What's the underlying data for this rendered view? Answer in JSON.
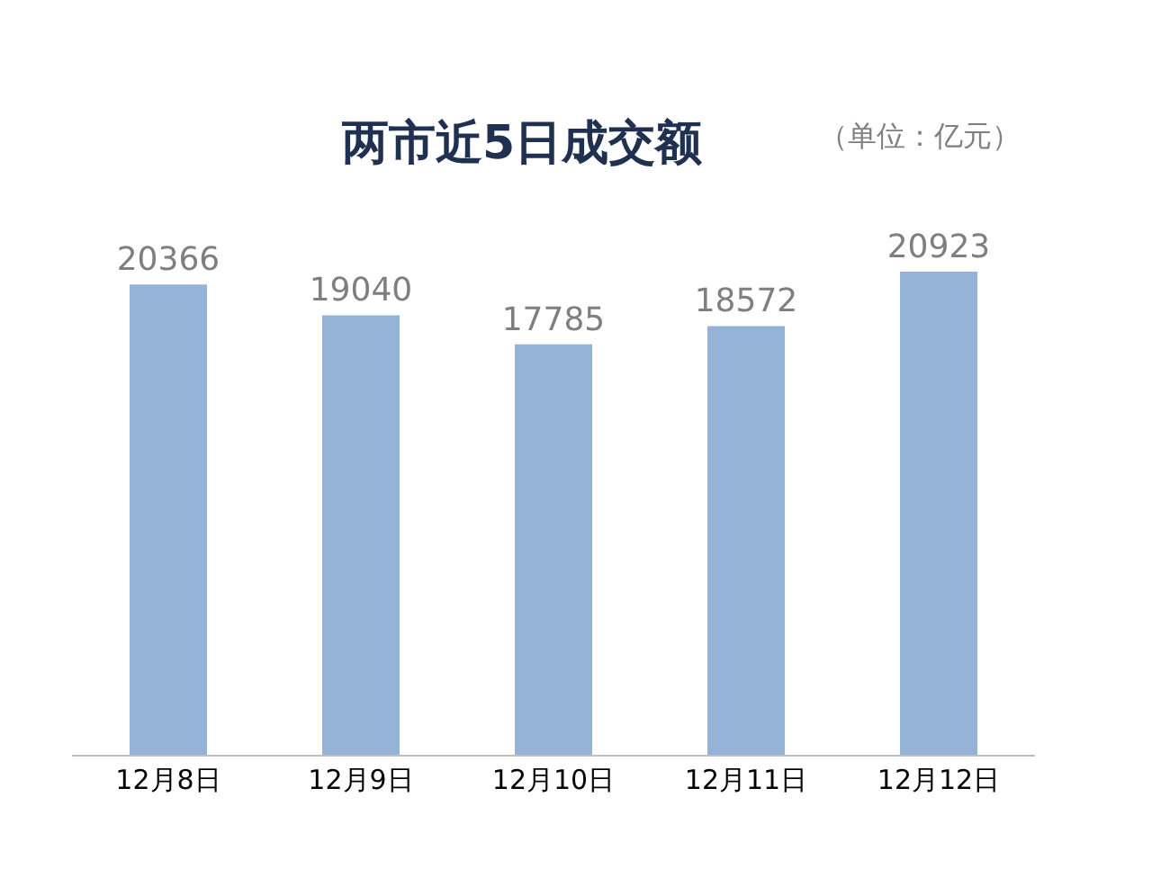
{
  "chart_data": {
    "type": "bar",
    "title": "两市近5日成交额",
    "subtitle": "（单位：亿元）",
    "categories": [
      "12月8日",
      "12月9日",
      "12月10日",
      "12月11日",
      "12月12日"
    ],
    "values": [
      20366,
      19040,
      17785,
      18572,
      20923
    ],
    "color": "#95b3d7",
    "data_labels": true,
    "grid": false
  }
}
